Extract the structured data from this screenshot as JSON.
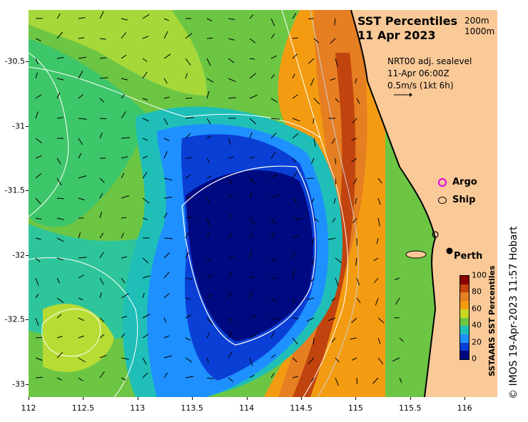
{
  "map": {
    "title": "SST Percentiles",
    "date": "11 Apr 2023",
    "contour_legend": [
      "200m",
      "1000m"
    ],
    "current_info": [
      "NRT00 adj. sealevel",
      "11-Apr 06:00Z",
      "0.5m/s (1kt 6h)"
    ],
    "markers": [
      {
        "label": "Argo",
        "icon": "magenta-circle-icon"
      },
      {
        "label": "Ship",
        "icon": "black-circle-icon"
      }
    ],
    "place": {
      "label": "Perth",
      "lon": 115.86,
      "lat": -31.95
    },
    "lon_ticks": [
      "112",
      "112.5",
      "113",
      "113.5",
      "114",
      "114.5",
      "115",
      "115.5",
      "116"
    ],
    "lat_ticks": [
      "-30.5",
      "-31",
      "-31.5",
      "-32",
      "-32.5",
      "-33"
    ],
    "lon_range": [
      112,
      116.3
    ],
    "lat_range": [
      -30.1,
      -33.1
    ],
    "land_color": "#f9c998",
    "credit": "© IMOS 19-Apr-2023 11:57 Hobart"
  },
  "colorbar": {
    "label": "SSTAARS SST Percentiles",
    "ticks": [
      "100",
      "80",
      "60",
      "40",
      "20",
      "0"
    ],
    "colors": [
      "#8b0000",
      "#c1440e",
      "#e67e22",
      "#f39c12",
      "#c8d820",
      "#6cc644",
      "#1fbfb8",
      "#1e90ff",
      "#0a3fd6",
      "#000a80"
    ]
  }
}
